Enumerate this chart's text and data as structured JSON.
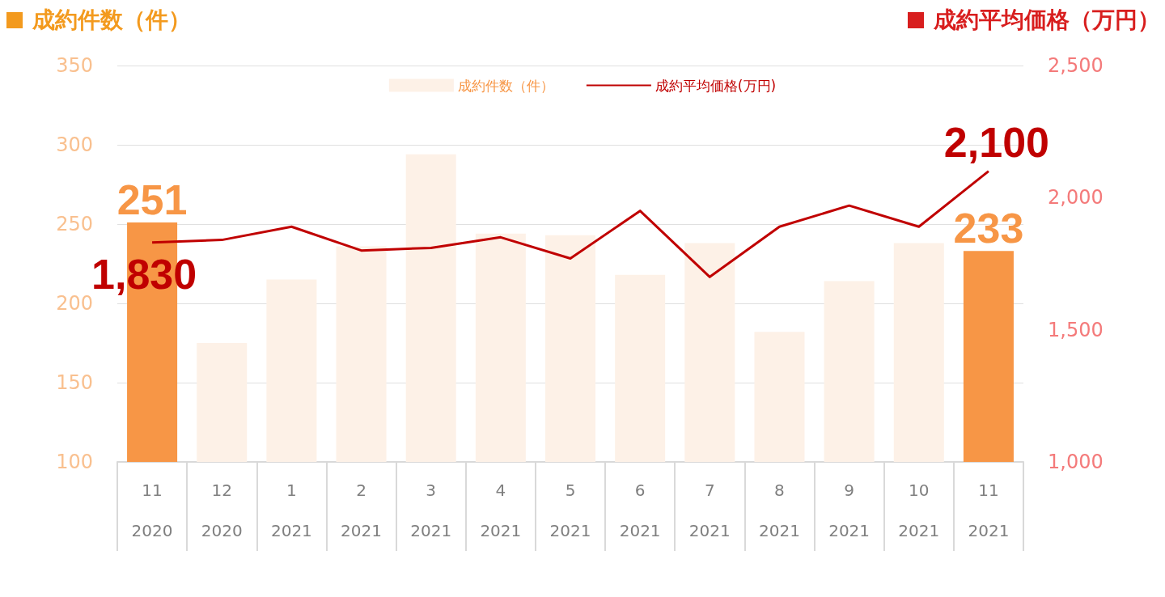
{
  "chart_data": {
    "type": "bar",
    "ylabel": "成約件数（件）",
    "y2label": "成約平均価格（万円）",
    "categories": [
      "11\n2020",
      "12\n2020",
      "1\n2021",
      "2\n2021",
      "3\n2021",
      "4\n2021",
      "5\n2021",
      "6\n2021",
      "7\n2021",
      "8\n2021",
      "9\n2021",
      "10\n2021",
      "11\n2021"
    ],
    "series": [
      {
        "name": "成約件数（件）",
        "color": "#fdf1e7",
        "colors": [
          "#f79646",
          "#fdf1e7",
          "#fdf1e7",
          "#fdf1e7",
          "#fdf1e7",
          "#fdf1e7",
          "#fdf1e7",
          "#fdf1e7",
          "#fdf1e7",
          "#fdf1e7",
          "#fdf1e7",
          "#fdf1e7",
          "#f79646"
        ],
        "values": [
          251,
          175,
          215,
          236,
          294,
          244,
          243,
          218,
          238,
          182,
          214,
          238,
          233
        ],
        "value_labels": [
          "251",
          null,
          null,
          null,
          null,
          null,
          null,
          null,
          null,
          null,
          null,
          null,
          "233"
        ]
      },
      {
        "name": "成約平均価格(万円)",
        "type": "line",
        "axis": "y2",
        "color": "#c00000",
        "values": [
          1830,
          1840,
          1890,
          1800,
          1810,
          1850,
          1770,
          1950,
          1700,
          1890,
          1970,
          1890,
          2100
        ],
        "value_labels": [
          "1,830",
          null,
          null,
          null,
          null,
          null,
          null,
          null,
          null,
          null,
          null,
          null,
          "2,100"
        ]
      }
    ],
    "ylim": [
      100,
      350
    ],
    "yticks": [
      100,
      150,
      200,
      250,
      300,
      350
    ],
    "y2lim": [
      1000,
      2500
    ],
    "y2ticks": [
      {
        "value": 1000,
        "label": "1,000"
      },
      {
        "value": 1500,
        "label": "1,500"
      },
      {
        "value": 2000,
        "label": "2,000"
      },
      {
        "value": 2500,
        "label": "2,500"
      }
    ],
    "grid": "y",
    "legend": "top"
  }
}
